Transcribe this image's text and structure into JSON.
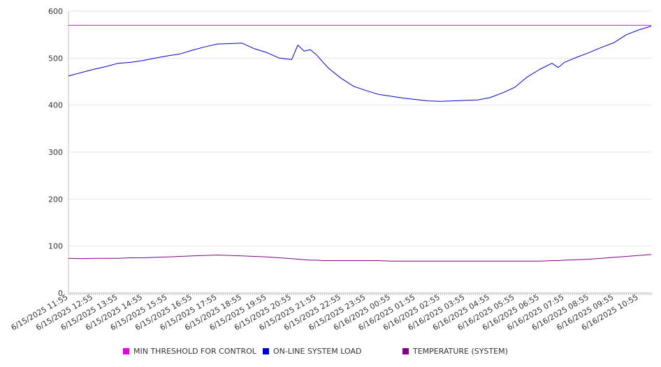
{
  "chart_data": {
    "type": "line",
    "title": "",
    "xlabel": "",
    "ylabel": "",
    "ylim": [
      0,
      600
    ],
    "yticks": [
      0,
      100,
      200,
      300,
      400,
      500,
      600
    ],
    "grid": true,
    "legend_position": "bottom",
    "x_tick_labels": [
      "6/15/2025 11:55",
      "6/15/2025 12:55",
      "6/15/2025 13:55",
      "6/15/2025 14:55",
      "6/15/2025 15:55",
      "6/15/2025 16:55",
      "6/15/2025 17:55",
      "6/15/2025 18:55",
      "6/15/2025 19:55",
      "6/15/2025 20:55",
      "6/15/2025 21:55",
      "6/15/2025 22:55",
      "6/15/2025 23:55",
      "6/16/2025 00:55",
      "6/16/2025 01:55",
      "6/16/2025 02:55",
      "6/16/2025 03:55",
      "6/16/2025 04:55",
      "6/16/2025 05:55",
      "6/16/2025 06:55",
      "6/16/2025 07:55",
      "6/16/2025 08:55",
      "6/16/2025 09:55",
      "6/16/2025 10:55"
    ],
    "x": [
      "6/15/2025 11:55",
      "6/15/2025 12:25",
      "6/15/2025 12:55",
      "6/15/2025 13:25",
      "6/15/2025 13:55",
      "6/15/2025 14:25",
      "6/15/2025 14:55",
      "6/15/2025 15:25",
      "6/15/2025 15:55",
      "6/15/2025 16:25",
      "6/15/2025 16:55",
      "6/15/2025 17:25",
      "6/15/2025 17:55",
      "6/15/2025 18:25",
      "6/15/2025 18:55",
      "6/15/2025 19:25",
      "6/15/2025 19:55",
      "6/15/2025 20:25",
      "6/15/2025 20:55",
      "6/15/2025 21:10",
      "6/15/2025 21:25",
      "6/15/2025 21:40",
      "6/15/2025 21:55",
      "6/15/2025 22:10",
      "6/15/2025 22:25",
      "6/15/2025 22:55",
      "6/15/2025 23:25",
      "6/15/2025 23:55",
      "6/16/2025 00:25",
      "6/16/2025 00:55",
      "6/16/2025 01:25",
      "6/16/2025 01:55",
      "6/16/2025 02:25",
      "6/16/2025 02:55",
      "6/16/2025 03:25",
      "6/16/2025 03:55",
      "6/16/2025 04:25",
      "6/16/2025 04:55",
      "6/16/2025 05:25",
      "6/16/2025 05:55",
      "6/16/2025 06:25",
      "6/16/2025 06:55",
      "6/16/2025 07:25",
      "6/16/2025 07:40",
      "6/16/2025 07:55",
      "6/16/2025 08:25",
      "6/16/2025 08:55",
      "6/16/2025 09:25",
      "6/16/2025 09:55",
      "6/16/2025 10:25",
      "6/16/2025 10:55",
      "6/16/2025 11:25"
    ],
    "series": [
      {
        "name": "MIN THRESHOLD FOR CONTROL",
        "color": "#e000e0",
        "values": [
          570,
          570,
          570,
          570,
          570,
          570,
          570,
          570,
          570,
          570,
          570,
          570,
          570,
          570,
          570,
          570,
          570,
          570,
          570,
          570,
          570,
          570,
          570,
          570,
          570,
          570,
          570,
          570,
          570,
          570,
          570,
          570,
          570,
          570,
          570,
          570,
          570,
          570,
          570,
          570,
          570,
          570,
          570,
          570,
          570,
          570,
          570,
          570,
          570,
          570,
          570,
          570
        ]
      },
      {
        "name": "ON-LINE SYSTEM LOAD",
        "color": "#0000cc",
        "values": [
          462,
          469,
          476,
          482,
          489,
          491,
          495,
          500,
          505,
          509,
          517,
          524,
          530,
          531,
          532,
          520,
          512,
          500,
          497,
          528,
          515,
          518,
          507,
          492,
          478,
          457,
          440,
          431,
          423,
          419,
          415,
          412,
          409,
          408,
          409,
          410,
          411,
          416,
          426,
          438,
          460,
          476,
          489,
          480,
          491,
          502,
          512,
          523,
          533,
          550,
          560,
          568
        ]
      },
      {
        "name": "TEMPERATURE (SYSTEM)",
        "color": "#800080",
        "values": [
          74,
          73,
          74,
          74,
          74,
          75,
          75,
          76,
          77,
          78,
          79,
          80,
          81,
          80,
          79,
          78,
          77,
          75,
          73,
          72,
          71,
          70,
          70,
          69,
          69,
          69,
          69,
          69,
          69,
          68,
          68,
          68,
          68,
          68,
          68,
          68,
          68,
          68,
          68,
          68,
          68,
          68,
          69,
          69,
          70,
          71,
          72,
          74,
          76,
          78,
          80,
          82
        ]
      }
    ]
  }
}
